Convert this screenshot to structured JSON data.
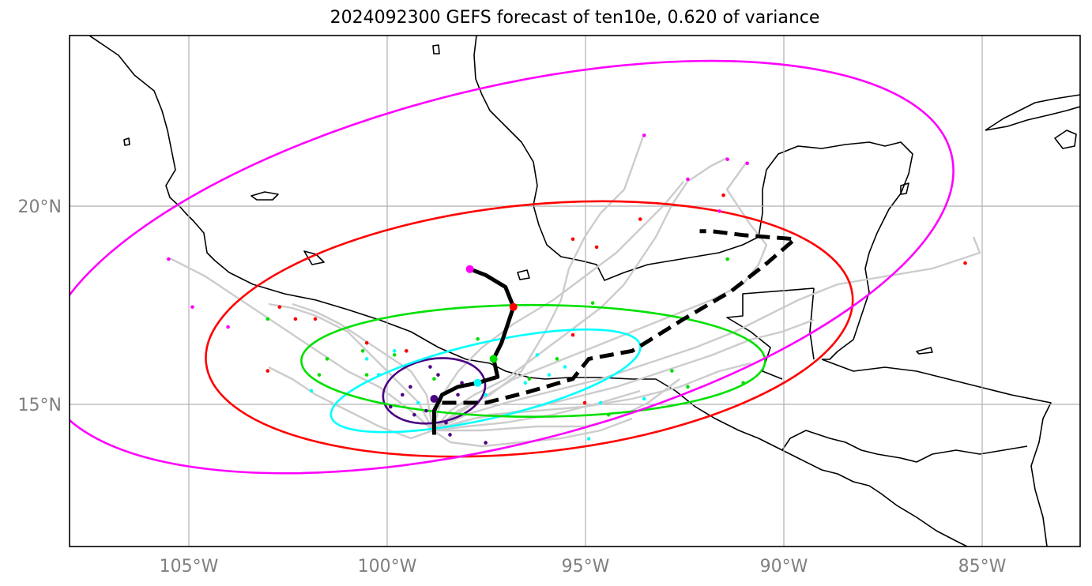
{
  "title": "2024092300 GEFS forecast of ten10e, 0.620 of variance",
  "map": {
    "projection": "PlateCarree",
    "lon_range": [
      -108,
      -82.5
    ],
    "lat_range": [
      11.5,
      24.3
    ],
    "grid": true
  },
  "axes": {
    "x_ticks": [
      {
        "lon": -105,
        "label": "105°W"
      },
      {
        "lon": -100,
        "label": "100°W"
      },
      {
        "lon": -95,
        "label": "95°W"
      },
      {
        "lon": -90,
        "label": "90°W"
      },
      {
        "lon": -85,
        "label": "85°W"
      }
    ],
    "y_ticks": [
      {
        "lat": 15,
        "label": "15°N"
      },
      {
        "lat": 20,
        "label": "20°N"
      }
    ]
  },
  "colors": {
    "coastline": "#000000",
    "grid": "#b0b0b0",
    "ensemble_track": "#cccccc",
    "mean_track": "#000000",
    "tick_label": "#808080"
  },
  "forecast_times": [
    {
      "id": "t1",
      "color": "#4b0082",
      "ellipse": {
        "cx": -98.8,
        "cy": 15.4,
        "rx": 1.3,
        "ry": 0.8,
        "rot": -10
      },
      "mean_pos": [
        -98.8,
        15.2
      ],
      "members": [
        [
          -99.4,
          15.5
        ],
        [
          -98.7,
          15.8
        ],
        [
          -98.2,
          15.3
        ],
        [
          -99.0,
          14.9
        ],
        [
          -98.5,
          14.6
        ],
        [
          -99.9,
          15.0
        ],
        [
          -98.1,
          15.6
        ],
        [
          -99.3,
          14.8
        ],
        [
          -98.9,
          16.0
        ],
        [
          -97.5,
          14.1
        ],
        [
          -98.4,
          14.3
        ],
        [
          -99.6,
          15.3
        ]
      ]
    },
    {
      "id": "t2",
      "color": "#00ffff",
      "ellipse": {
        "cx": -97.5,
        "cy": 15.65,
        "rx": 4.0,
        "ry": 0.95,
        "rot": -13
      },
      "mean_pos": [
        -97.7,
        15.6
      ],
      "members": [
        [
          -101.9,
          15.4
        ],
        [
          -100.5,
          16.2
        ],
        [
          -99.8,
          16.4
        ],
        [
          -97.0,
          16.9
        ],
        [
          -96.2,
          16.3
        ],
        [
          -95.9,
          15.8
        ],
        [
          -94.6,
          15.1
        ],
        [
          -94.9,
          14.2
        ],
        [
          -93.5,
          15.2
        ],
        [
          -97.5,
          15.3
        ],
        [
          -99.2,
          15.1
        ],
        [
          -96.5,
          15.6
        ],
        [
          -95.5,
          16.0
        ],
        [
          -100.2,
          15.8
        ]
      ]
    },
    {
      "id": "t3",
      "color": "#00e000",
      "ellipse": {
        "cx": -96.3,
        "cy": 16.15,
        "rx": 5.85,
        "ry": 1.4,
        "rot": 0
      },
      "mean_pos": [
        -97.3,
        16.2
      ],
      "members": [
        [
          -103.0,
          17.2
        ],
        [
          -101.5,
          16.2
        ],
        [
          -100.6,
          16.4
        ],
        [
          -100.5,
          15.8
        ],
        [
          -99.8,
          16.3
        ],
        [
          -97.7,
          16.7
        ],
        [
          -95.7,
          16.2
        ],
        [
          -94.8,
          17.6
        ],
        [
          -94.4,
          14.8
        ],
        [
          -92.4,
          15.5
        ],
        [
          -92.8,
          15.9
        ],
        [
          -91.0,
          15.6
        ],
        [
          -91.4,
          18.7
        ],
        [
          -98.8,
          15.7
        ],
        [
          -96.4,
          15.7
        ],
        [
          -101.7,
          15.8
        ]
      ]
    },
    {
      "id": "t4",
      "color": "#ff0000",
      "ellipse": {
        "cx": -96.4,
        "cy": 16.95,
        "rx": 8.2,
        "ry": 3.1,
        "rot": -6
      },
      "mean_pos": [
        -96.8,
        17.5
      ],
      "members": [
        [
          -103.0,
          15.9
        ],
        [
          -102.7,
          17.5
        ],
        [
          -102.3,
          17.2
        ],
        [
          -101.8,
          17.2
        ],
        [
          -100.5,
          16.6
        ],
        [
          -99.5,
          16.4
        ],
        [
          -95.3,
          16.8
        ],
        [
          -95.0,
          15.1
        ],
        [
          -94.7,
          19.0
        ],
        [
          -93.6,
          19.7
        ],
        [
          -91.5,
          20.3
        ],
        [
          -85.4,
          18.6
        ],
        [
          -95.3,
          19.2
        ]
      ]
    },
    {
      "id": "t5",
      "color": "#ff00ff",
      "ellipse": {
        "cx": -97.2,
        "cy": 18.5,
        "rx": 11.8,
        "ry": 4.45,
        "rot": -14
      },
      "mean_pos": [
        -97.9,
        18.45
      ],
      "members": [
        [
          -105.5,
          18.7
        ],
        [
          -104.9,
          17.5
        ],
        [
          -104.0,
          17.0
        ],
        [
          -93.5,
          21.8
        ],
        [
          -92.4,
          20.7
        ],
        [
          -91.4,
          21.2
        ],
        [
          -90.9,
          21.1
        ],
        [
          -91.6,
          19.9
        ]
      ]
    }
  ],
  "mean_track_solid": [
    [
      -98.8,
      14.3
    ],
    [
      -98.8,
      14.9
    ],
    [
      -98.6,
      15.3
    ],
    [
      -98.2,
      15.5
    ],
    [
      -97.7,
      15.6
    ],
    [
      -97.2,
      15.75
    ],
    [
      -97.3,
      16.2
    ],
    [
      -97.1,
      16.6
    ],
    [
      -96.8,
      17.5
    ],
    [
      -97.0,
      18.0
    ],
    [
      -97.5,
      18.3
    ],
    [
      -97.9,
      18.45
    ]
  ],
  "mean_track_dashed": [
    [
      -98.6,
      15.1
    ],
    [
      -97.5,
      15.1
    ],
    [
      -96.5,
      15.35
    ],
    [
      -95.3,
      15.7
    ],
    [
      -94.9,
      16.2
    ],
    [
      -93.8,
      16.4
    ],
    [
      -92.5,
      17.2
    ],
    [
      -91.3,
      17.9
    ],
    [
      -90.4,
      18.6
    ],
    [
      -89.7,
      19.2
    ],
    [
      -91.0,
      19.3
    ],
    [
      -91.8,
      19.4
    ],
    [
      -92.1,
      19.4
    ]
  ]
}
